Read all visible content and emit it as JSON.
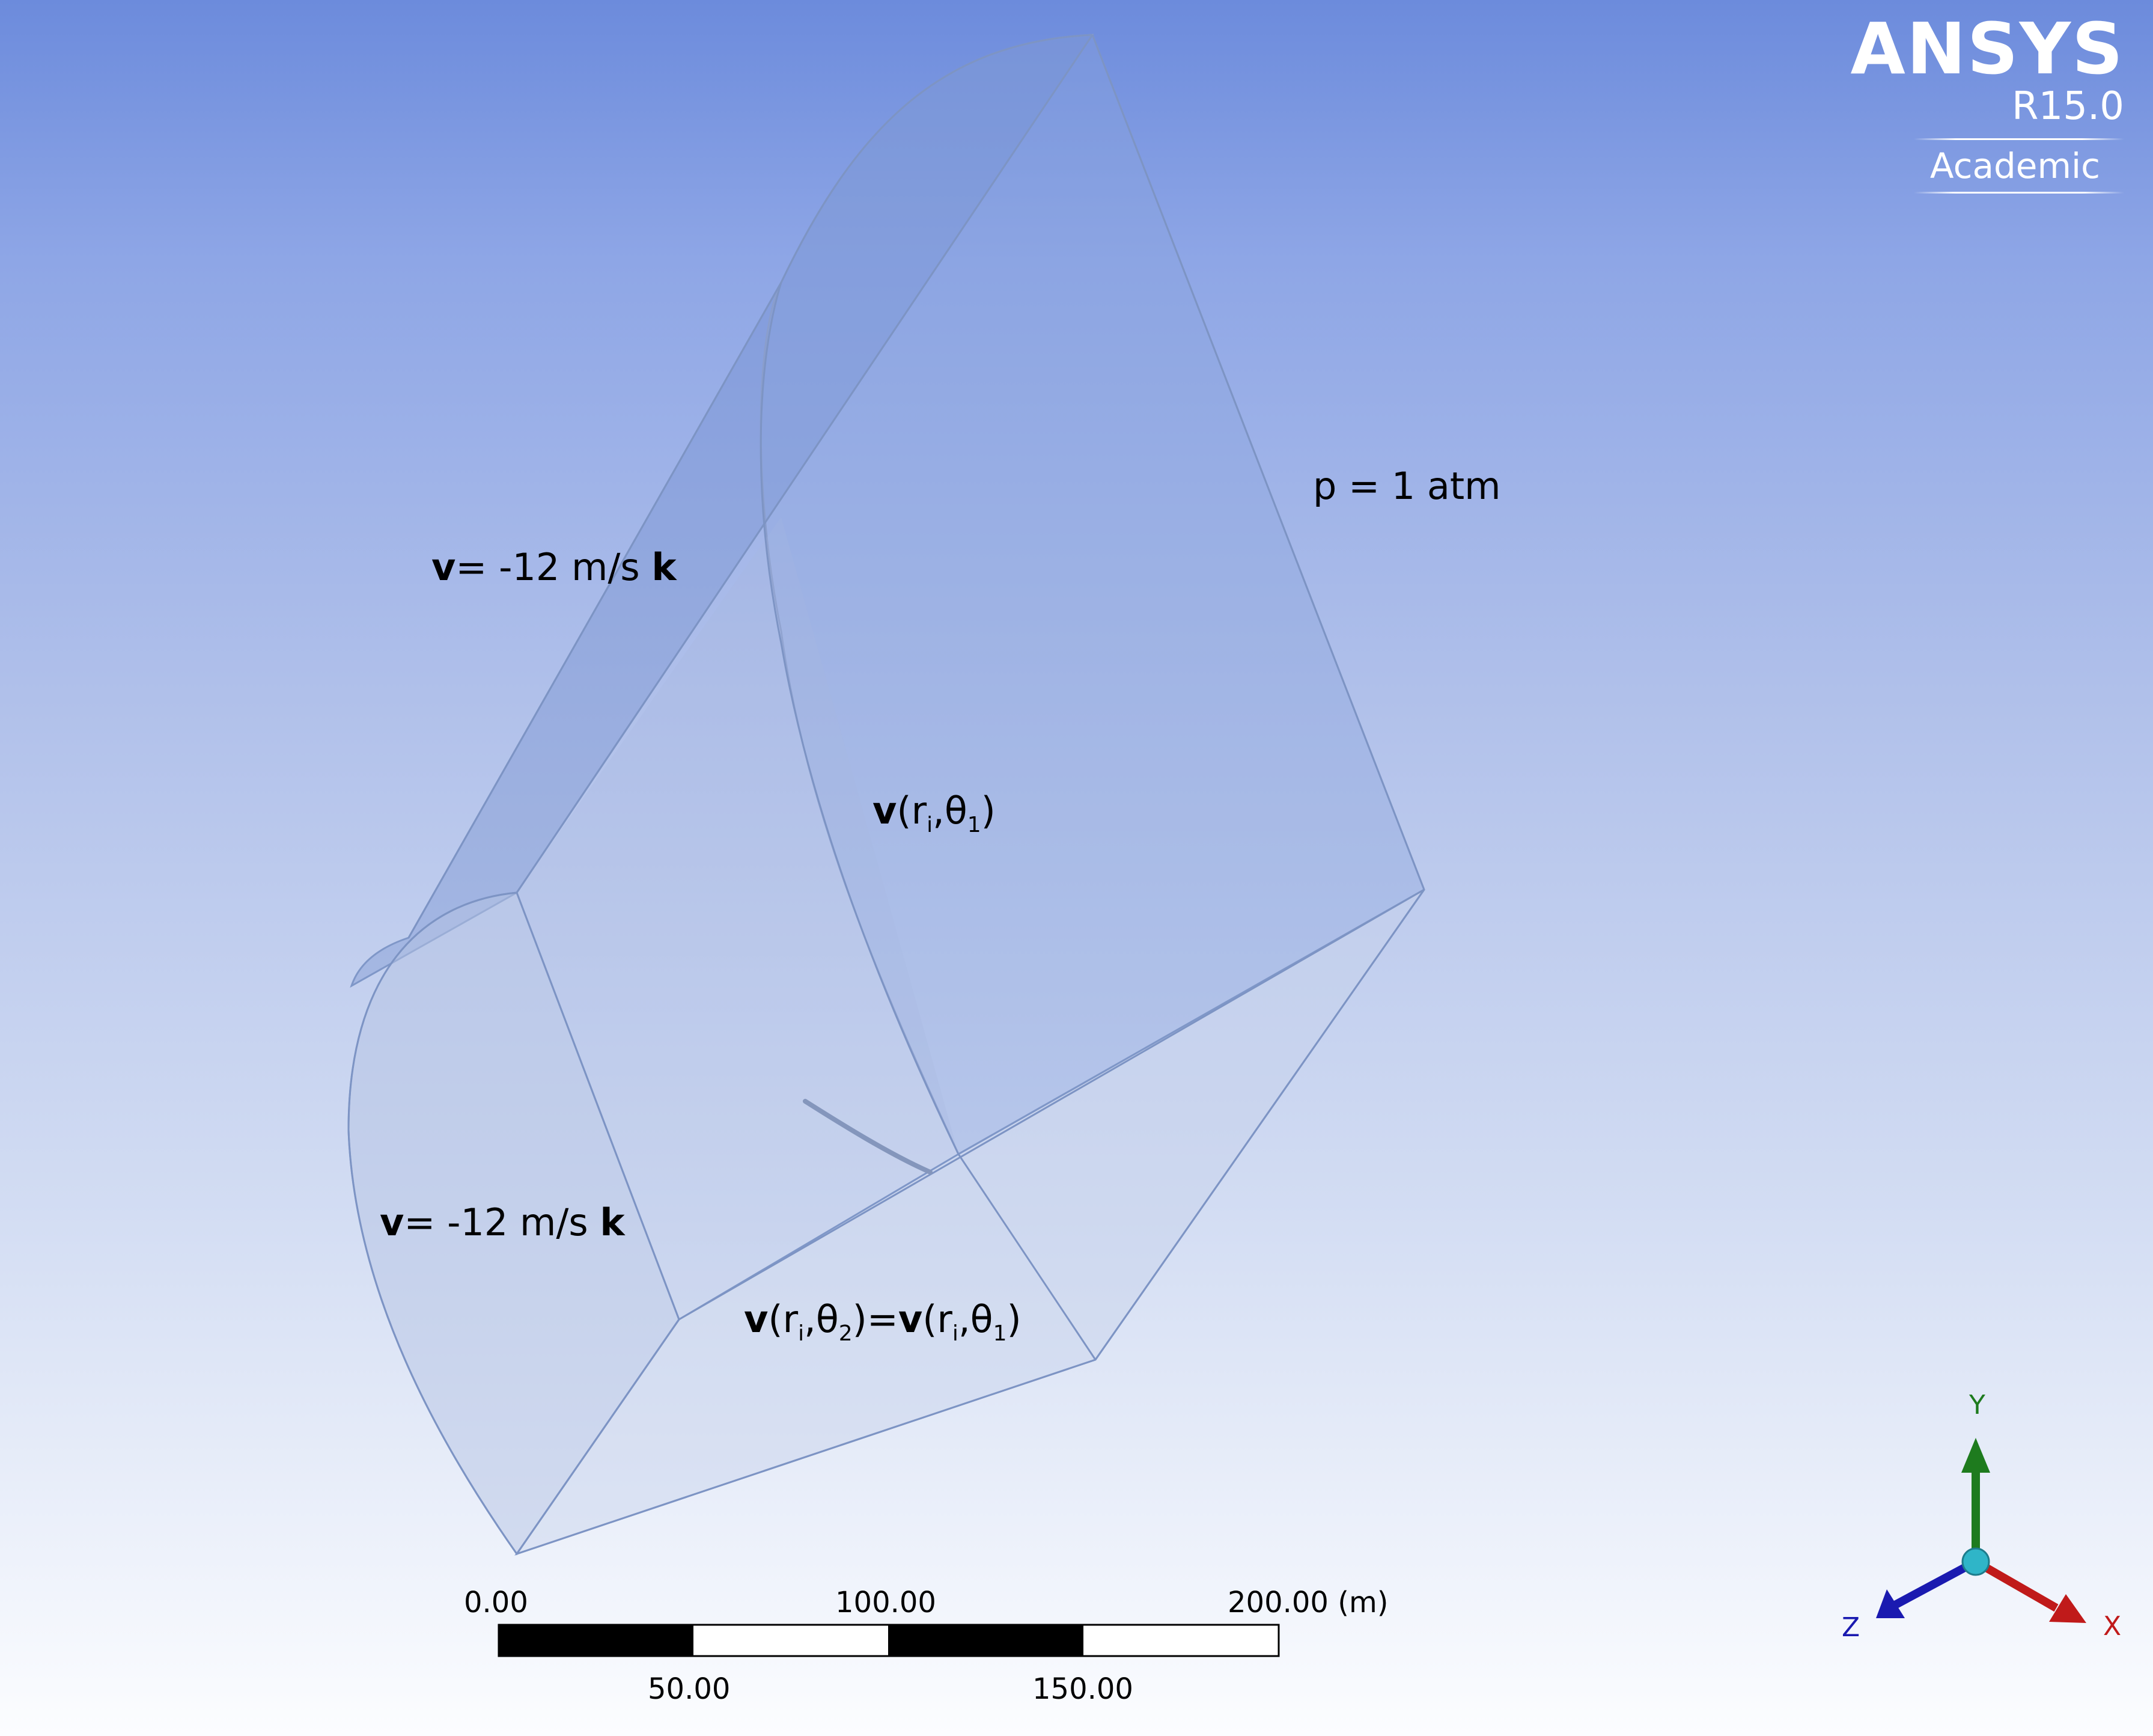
{
  "logo": {
    "brand": "ANSYS",
    "version": "R15.0",
    "edition": "Academic"
  },
  "annotations": {
    "outlet_pressure": "p = 1 atm",
    "top_velocity": {
      "bold": "v",
      "text": "= -12 m/s ",
      "bold_unit": "k"
    },
    "front_velocity": {
      "bold": "v",
      "text": "= -12 m/s ",
      "bold_unit": "k"
    },
    "periodic_1": {
      "bold": "v",
      "open": "(r",
      "sub_i": "i",
      "sep": ",θ",
      "sub_1": "1",
      "close": ")"
    },
    "periodic_2": {
      "bold": "v",
      "open": "(r",
      "sub_i": "i",
      "sep": ",θ",
      "sub_2": "2",
      "mid": ")=",
      "bold2": "v",
      "open2": "(r",
      "sub_i2": "i",
      "sep2": ",θ",
      "sub_12": "1",
      "close": ")"
    }
  },
  "scale_bar": {
    "top_labels": [
      "0.00",
      "100.00",
      "200.00 (m)"
    ],
    "bottom_labels": [
      "50.00",
      "150.00"
    ]
  },
  "triad": {
    "y": "Y",
    "z": "Z",
    "x": "X",
    "colors": {
      "y": "#1e7b1e",
      "z": "#1a1ab0",
      "x": "#c01a1a",
      "origin": "#2fb5c8"
    }
  }
}
